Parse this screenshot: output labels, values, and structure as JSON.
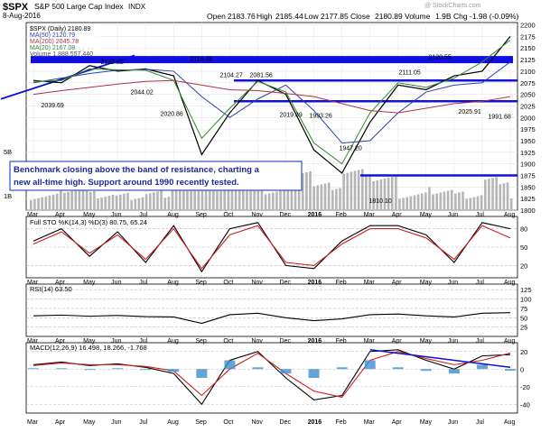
{
  "header": {
    "symbol": "$SPX",
    "name": "S&P 500 Large Cap Index",
    "exchange": "INDX",
    "date": "8-Aug-2016",
    "open_label": "Open",
    "open": "2183.76",
    "high_label": "High",
    "high": "2185.44",
    "low_label": "Low",
    "low": "2177.85",
    "close_label": "Close",
    "close": "2180.89",
    "volume_label": "Volume",
    "volume": "1.9B",
    "chg_label": "Chg",
    "chg": "-1.98 (-0.09%)",
    "watermark": "@ StockCharts.com"
  },
  "legend": {
    "main": "$SPX (Daily) 2180.89",
    "ma50": "MA(50) 2120.79",
    "ma200": "MA(200) 2045.78",
    "ma20": "MA(20) 2167.08",
    "volume": "Volume 1,888,557,440"
  },
  "annotation": "Benchmark closing above the band of resistance, charting a new all-time high. Support around 1990 recently tested.",
  "colors": {
    "price": "#000000",
    "ma50": "#2a3fae",
    "ma200": "#b0304a",
    "ma20": "#2f8a2f",
    "trendline": "#0a10d8",
    "resistance_band": "#1010e0",
    "volume_bar": "#b5b5b5",
    "sto_k": "#000000",
    "sto_d": "#d02020",
    "rsi": "#000000",
    "macd": "#000000",
    "macd_signal": "#d02020",
    "histogram": "#3d8fd0",
    "annotation_text": "#1a2a9a"
  },
  "chart_data": [
    {
      "type": "line",
      "panel": "price",
      "x": [
        "Mar",
        "Apr",
        "May",
        "Jun",
        "Jul",
        "Aug",
        "Sep",
        "Oct",
        "Nov",
        "Dec",
        "2016",
        "Feb",
        "Mar",
        "Apr",
        "May",
        "Jun",
        "Jul",
        "Aug"
      ],
      "series": [
        {
          "name": "$SPX (Daily)",
          "values": [
            2080,
            2075,
            2112,
            2100,
            2105,
            2090,
            1920,
            2010,
            2080,
            2050,
            1930,
            1880,
            1990,
            2070,
            2060,
            2090,
            2100,
            2175
          ]
        },
        {
          "name": "MA(50)",
          "values": [
            2075,
            2085,
            2095,
            2102,
            2104,
            2100,
            2045,
            2000,
            2040,
            2070,
            2015,
            1945,
            1950,
            2010,
            2055,
            2070,
            2075,
            2120
          ]
        },
        {
          "name": "MA(200)",
          "values": [
            2050,
            2058,
            2065,
            2072,
            2078,
            2080,
            2070,
            2060,
            2058,
            2052,
            2045,
            2030,
            2015,
            2010,
            2020,
            2030,
            2035,
            2045
          ]
        },
        {
          "name": "MA(20)",
          "values": [
            2078,
            2080,
            2105,
            2103,
            2102,
            2080,
            1955,
            2020,
            2078,
            2055,
            1945,
            1900,
            2010,
            2075,
            2065,
            2085,
            2120,
            2167
          ]
        }
      ],
      "annotations_values": [
        "2039.69",
        "2134.72",
        "2132.82",
        "2044.02",
        "2020.86",
        "2116.48",
        "2104.27",
        "2081.56",
        "2019.39",
        "1993.26",
        "1947.20",
        "1810.10",
        "2111.05",
        "2120.55",
        "2025.91",
        "1991.68"
      ],
      "resistance_levels": [
        2125,
        2110,
        2080,
        2035,
        1875
      ],
      "yticks": [
        1800,
        1825,
        1850,
        1875,
        1900,
        1925,
        1950,
        1975,
        2000,
        2025,
        2050,
        2075,
        2100,
        2125,
        2150,
        2175,
        2200
      ],
      "ylim": [
        1800,
        2205
      ],
      "volume_ticks": [
        "5B",
        "1B"
      ]
    },
    {
      "type": "line",
      "panel": "stochastic",
      "title": "Full STO %K(14,3) %D(3) 80.75, 65.24",
      "series": [
        {
          "name": "%K(14,3)",
          "values": [
            60,
            80,
            35,
            75,
            25,
            85,
            10,
            80,
            90,
            20,
            15,
            60,
            85,
            85,
            70,
            25,
            90,
            80
          ]
        },
        {
          "name": "%D(3)",
          "values": [
            55,
            75,
            40,
            70,
            30,
            80,
            15,
            70,
            85,
            25,
            20,
            55,
            80,
            80,
            65,
            30,
            85,
            65
          ]
        }
      ],
      "yticks": [
        20,
        50,
        80
      ],
      "ylim": [
        0,
        100
      ]
    },
    {
      "type": "line",
      "panel": "rsi",
      "title": "RSI(14) 63.50",
      "series": [
        {
          "name": "RSI(14)",
          "values": [
            55,
            57,
            54,
            56,
            53,
            52,
            35,
            58,
            62,
            50,
            42,
            47,
            58,
            60,
            55,
            52,
            62,
            63.5
          ]
        }
      ],
      "yticks": [
        25,
        50,
        75,
        100,
        125
      ],
      "ylim": [
        0,
        140
      ]
    },
    {
      "type": "line",
      "panel": "macd",
      "title": "MACD(12,26,9) 16.498, 18.266, -1.768",
      "series": [
        {
          "name": "MACD(12,26,9)",
          "values": [
            5,
            8,
            4,
            6,
            2,
            -5,
            -40,
            10,
            20,
            -10,
            -35,
            -30,
            20,
            22,
            10,
            0,
            15,
            16.498
          ]
        },
        {
          "name": "Signal",
          "values": [
            4,
            7,
            5,
            5,
            3,
            -2,
            -30,
            0,
            18,
            -5,
            -25,
            -32,
            10,
            20,
            12,
            5,
            10,
            18.266
          ]
        },
        {
          "name": "Histogram",
          "values": [
            1,
            1,
            -1,
            1,
            -1,
            -3,
            -10,
            10,
            2,
            -5,
            -10,
            2,
            10,
            2,
            -2,
            -5,
            5,
            -1.768
          ]
        }
      ],
      "yticks": [
        -40,
        -20,
        0,
        20
      ],
      "ylim": [
        -50,
        30
      ]
    }
  ]
}
